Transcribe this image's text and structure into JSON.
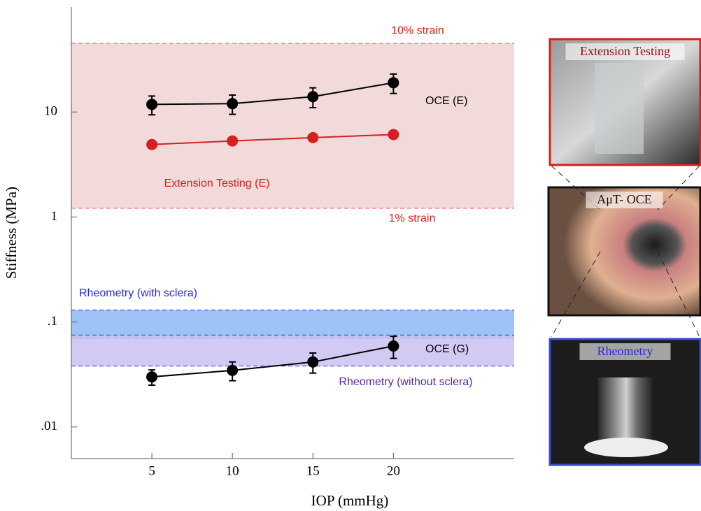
{
  "chart_data": {
    "type": "scatter",
    "x_label": "IOP (mmHg)",
    "y_label": "Stiffness (MPa)",
    "log_y": true,
    "xlim": [
      0,
      27.5
    ],
    "ylim": [
      0.005,
      100
    ],
    "xticks": [
      5,
      10,
      15,
      20
    ],
    "yticks": [
      {
        "value": 0.01,
        "label": ".01"
      },
      {
        "value": 0.1,
        "label": ".1"
      },
      1,
      10
    ],
    "x": [
      5,
      10,
      15,
      20
    ],
    "series": [
      {
        "name": "OCE (E)",
        "color": "#000000",
        "values": [
          11.8,
          12,
          14,
          19
        ],
        "errors": [
          2.4,
          2.5,
          3,
          4
        ]
      },
      {
        "name": "Extension Testing (E)",
        "color": "#d42020",
        "values": [
          4.9,
          5.3,
          5.7,
          6.1
        ]
      },
      {
        "name": "OCE (G)",
        "color": "#000000",
        "values": [
          0.03,
          0.0346,
          0.0416,
          0.059
        ],
        "errors": [
          0.005,
          0.007,
          0.009,
          0.014
        ]
      }
    ],
    "bands": [
      {
        "lower": 1.21,
        "upper": 45,
        "lower_label": "1% strain",
        "upper_label": "10% strain",
        "color": "#f3dada",
        "edge": "#e06a6a",
        "text_color": "#d42020"
      },
      {
        "name": "Rheometry (with sclera)",
        "lower": 0.07,
        "upper": 0.13,
        "color": "#8cb8f6",
        "edge": "#3a5ad0",
        "text_color": "#2a2ae0"
      },
      {
        "name": "Rheometry (without sclera)",
        "lower": 0.038,
        "upper": 0.075,
        "color": "#c9c2f2",
        "edge": "#5a4ac8",
        "text_color": "#5a2a9a"
      }
    ],
    "panels": [
      {
        "label": "Extension Testing",
        "border": "#d42020",
        "text_color": "#8a1010"
      },
      {
        "label": "AμT- OCE",
        "border": "#111111",
        "text_color": "#111111"
      },
      {
        "label": "Rheometry",
        "border": "#3a4ad0",
        "text_color": "#2a2ae0"
      }
    ]
  }
}
